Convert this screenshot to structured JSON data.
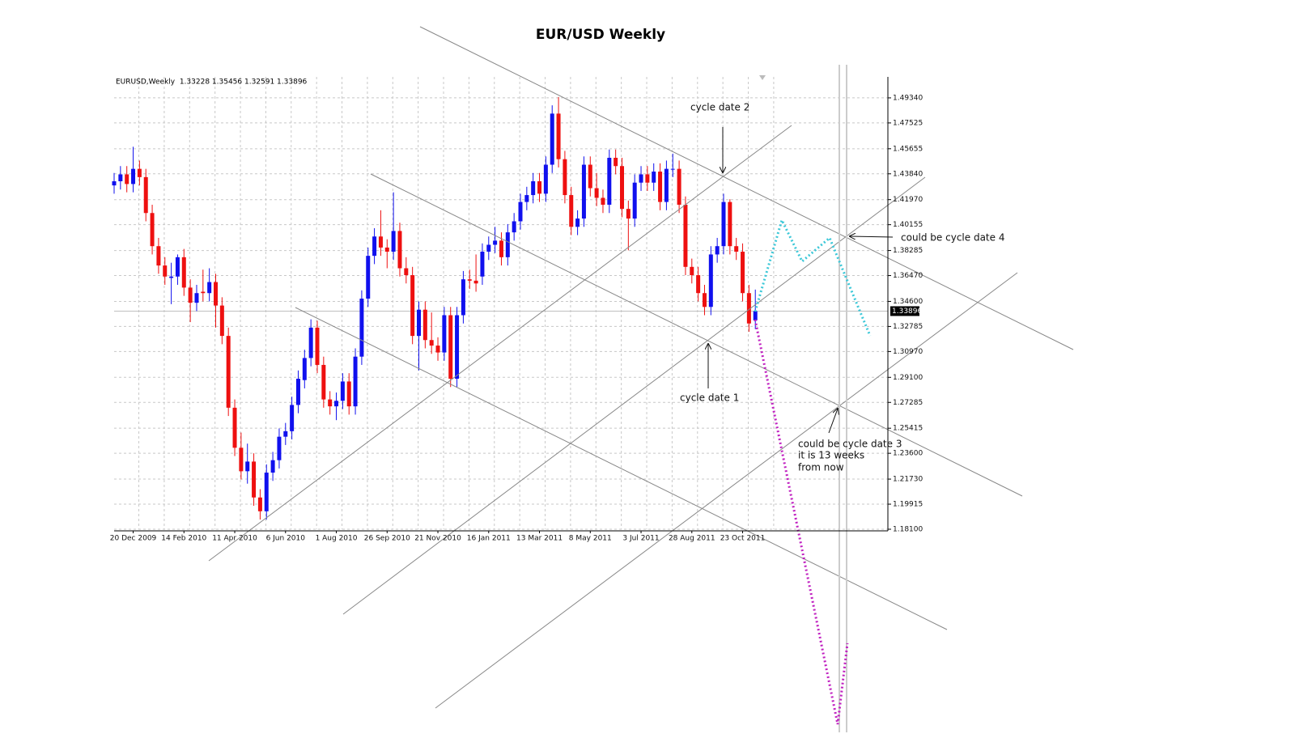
{
  "chart_data": {
    "type": "candlestick",
    "title": "EUR/USD Weekly",
    "header": "EURUSD,Weekly  1.33228 1.35456 1.32591 1.33896",
    "categories": [
      null,
      null,
      null,
      "20 Dec 2009",
      null,
      null,
      null,
      null,
      null,
      null,
      null,
      "14 Feb 2010",
      null,
      null,
      null,
      null,
      null,
      null,
      null,
      "11 Apr 2010",
      null,
      null,
      null,
      null,
      null,
      null,
      null,
      "6 Jun 2010",
      null,
      null,
      null,
      null,
      null,
      null,
      null,
      "1 Aug 2010",
      null,
      null,
      null,
      null,
      null,
      null,
      null,
      "26 Sep 2010",
      null,
      null,
      null,
      null,
      null,
      null,
      null,
      "21 Nov 2010",
      null,
      null,
      null,
      null,
      null,
      null,
      null,
      "16 Jan 2011",
      null,
      null,
      null,
      null,
      null,
      null,
      null,
      "13 Mar 2011",
      null,
      null,
      null,
      null,
      null,
      null,
      null,
      "8 May 2011",
      null,
      null,
      null,
      null,
      null,
      null,
      null,
      "3 Jul 2011",
      null,
      null,
      null,
      null,
      null,
      null,
      null,
      "28 Aug 2011",
      null,
      null,
      null,
      null,
      null,
      null,
      null,
      "23 Oct 2011",
      null,
      null
    ],
    "open": [
      1.43,
      1.433,
      1.438,
      1.431,
      1.442,
      1.436,
      1.41,
      1.386,
      1.372,
      1.363,
      1.364,
      1.378,
      1.356,
      1.345,
      1.353,
      1.352,
      1.36,
      1.343,
      1.321,
      1.269,
      1.24,
      1.223,
      1.23,
      1.204,
      1.194,
      1.222,
      1.231,
      1.248,
      1.252,
      1.271,
      1.289,
      1.305,
      1.327,
      1.3,
      1.275,
      1.27,
      1.274,
      1.288,
      1.27,
      1.306,
      1.348,
      1.379,
      1.393,
      1.385,
      1.382,
      1.397,
      1.37,
      1.365,
      1.321,
      1.34,
      1.318,
      1.314,
      1.309,
      1.336,
      1.29,
      1.336,
      1.362,
      1.361,
      1.364,
      1.382,
      1.387,
      1.39,
      1.378,
      1.396,
      1.404,
      1.418,
      1.423,
      1.433,
      1.424,
      1.445,
      1.482,
      1.449,
      1.423,
      1.4,
      1.406,
      1.445,
      1.428,
      1.421,
      1.416,
      1.45,
      1.444,
      1.413,
      1.406,
      1.432,
      1.438,
      1.432,
      1.44,
      1.418,
      1.442,
      1.442,
      1.416,
      1.371,
      1.365,
      1.352,
      1.342,
      1.38,
      1.386,
      1.418,
      1.386,
      1.382,
      1.352,
      1.33228
    ],
    "high": [
      1.439,
      1.444,
      1.444,
      1.458,
      1.448,
      1.442,
      1.416,
      1.392,
      1.378,
      1.374,
      1.38,
      1.384,
      1.362,
      1.358,
      1.369,
      1.37,
      1.366,
      1.349,
      1.327,
      1.275,
      1.251,
      1.243,
      1.236,
      1.21,
      1.228,
      1.237,
      1.254,
      1.258,
      1.277,
      1.296,
      1.311,
      1.333,
      1.332,
      1.306,
      1.281,
      1.28,
      1.294,
      1.294,
      1.312,
      1.354,
      1.385,
      1.399,
      1.412,
      1.391,
      1.425,
      1.403,
      1.378,
      1.371,
      1.346,
      1.346,
      1.338,
      1.32,
      1.342,
      1.342,
      1.342,
      1.368,
      1.369,
      1.38,
      1.388,
      1.393,
      1.4,
      1.396,
      1.402,
      1.41,
      1.424,
      1.429,
      1.439,
      1.439,
      1.451,
      1.488,
      1.494,
      1.455,
      1.429,
      1.412,
      1.451,
      1.451,
      1.439,
      1.427,
      1.456,
      1.456,
      1.45,
      1.419,
      1.438,
      1.444,
      1.444,
      1.446,
      1.446,
      1.448,
      1.453,
      1.448,
      1.422,
      1.377,
      1.371,
      1.358,
      1.386,
      1.392,
      1.424,
      1.42,
      1.392,
      1.388,
      1.358,
      1.35456
    ],
    "low": [
      1.424,
      1.427,
      1.425,
      1.425,
      1.43,
      1.404,
      1.38,
      1.366,
      1.358,
      1.344,
      1.358,
      1.35,
      1.331,
      1.339,
      1.346,
      1.346,
      1.327,
      1.315,
      1.263,
      1.234,
      1.217,
      1.214,
      1.198,
      1.188,
      1.188,
      1.216,
      1.225,
      1.242,
      1.246,
      1.265,
      1.283,
      1.299,
      1.294,
      1.269,
      1.264,
      1.26,
      1.268,
      1.264,
      1.264,
      1.3,
      1.342,
      1.373,
      1.379,
      1.37,
      1.376,
      1.364,
      1.359,
      1.315,
      1.296,
      1.312,
      1.308,
      1.303,
      1.303,
      1.284,
      1.284,
      1.33,
      1.355,
      1.353,
      1.358,
      1.376,
      1.381,
      1.372,
      1.372,
      1.39,
      1.398,
      1.412,
      1.417,
      1.418,
      1.418,
      1.439,
      1.443,
      1.417,
      1.394,
      1.394,
      1.4,
      1.422,
      1.415,
      1.41,
      1.41,
      1.438,
      1.407,
      1.383,
      1.4,
      1.426,
      1.426,
      1.426,
      1.412,
      1.412,
      1.436,
      1.41,
      1.365,
      1.359,
      1.346,
      1.336,
      1.336,
      1.374,
      1.38,
      1.38,
      1.376,
      1.346,
      1.324,
      1.32591
    ],
    "close": [
      1.433,
      1.438,
      1.431,
      1.442,
      1.436,
      1.41,
      1.386,
      1.372,
      1.364,
      1.364,
      1.378,
      1.356,
      1.345,
      1.352,
      1.352,
      1.36,
      1.343,
      1.321,
      1.269,
      1.24,
      1.223,
      1.23,
      1.204,
      1.194,
      1.222,
      1.231,
      1.248,
      1.252,
      1.271,
      1.29,
      1.305,
      1.327,
      1.3,
      1.275,
      1.27,
      1.274,
      1.288,
      1.27,
      1.306,
      1.348,
      1.379,
      1.393,
      1.385,
      1.382,
      1.397,
      1.37,
      1.365,
      1.321,
      1.34,
      1.318,
      1.314,
      1.309,
      1.336,
      1.29,
      1.336,
      1.362,
      1.361,
      1.359,
      1.382,
      1.387,
      1.39,
      1.378,
      1.396,
      1.404,
      1.418,
      1.423,
      1.433,
      1.424,
      1.445,
      1.482,
      1.449,
      1.423,
      1.4,
      1.406,
      1.445,
      1.428,
      1.421,
      1.416,
      1.45,
      1.444,
      1.413,
      1.406,
      1.432,
      1.438,
      1.432,
      1.44,
      1.418,
      1.442,
      1.442,
      1.416,
      1.371,
      1.365,
      1.352,
      1.342,
      1.38,
      1.386,
      1.418,
      1.386,
      1.382,
      1.352,
      1.33,
      1.33896
    ],
    "up_color": "#1010ee",
    "down_color": "#ee1010",
    "last_price": 1.33896,
    "ylim": [
      1.181,
      1.5086
    ],
    "yticks": [
      {
        "value": 1.4934,
        "label": "1.49340"
      },
      {
        "value": 1.47525,
        "label": "1.47525"
      },
      {
        "value": 1.45655,
        "label": "1.45655"
      },
      {
        "value": 1.4384,
        "label": "1.43840"
      },
      {
        "value": 1.4197,
        "label": "1.41970"
      },
      {
        "value": 1.40155,
        "label": "1.40155"
      },
      {
        "value": 1.38285,
        "label": "1.38285"
      },
      {
        "value": 1.3647,
        "label": "1.36470"
      },
      {
        "value": 1.346,
        "label": "1.34600"
      },
      {
        "value": 1.32785,
        "label": "1.32785"
      },
      {
        "value": 1.3097,
        "label": "1.30970"
      },
      {
        "value": 1.291,
        "label": "1.29100"
      },
      {
        "value": 1.27285,
        "label": "1.27285"
      },
      {
        "value": 1.25415,
        "label": "1.25415"
      },
      {
        "value": 1.236,
        "label": "1.23600"
      },
      {
        "value": 1.2173,
        "label": "1.21730"
      },
      {
        "value": 1.19915,
        "label": "1.19915"
      },
      {
        "value": 1.181,
        "label": "1.18100"
      }
    ],
    "grid": true,
    "annotations": [
      "cycle date 2",
      "cycle date 1",
      "could be cycle date 4",
      "could be cycle date 3",
      "it is 13 weeks",
      "from now"
    ]
  }
}
